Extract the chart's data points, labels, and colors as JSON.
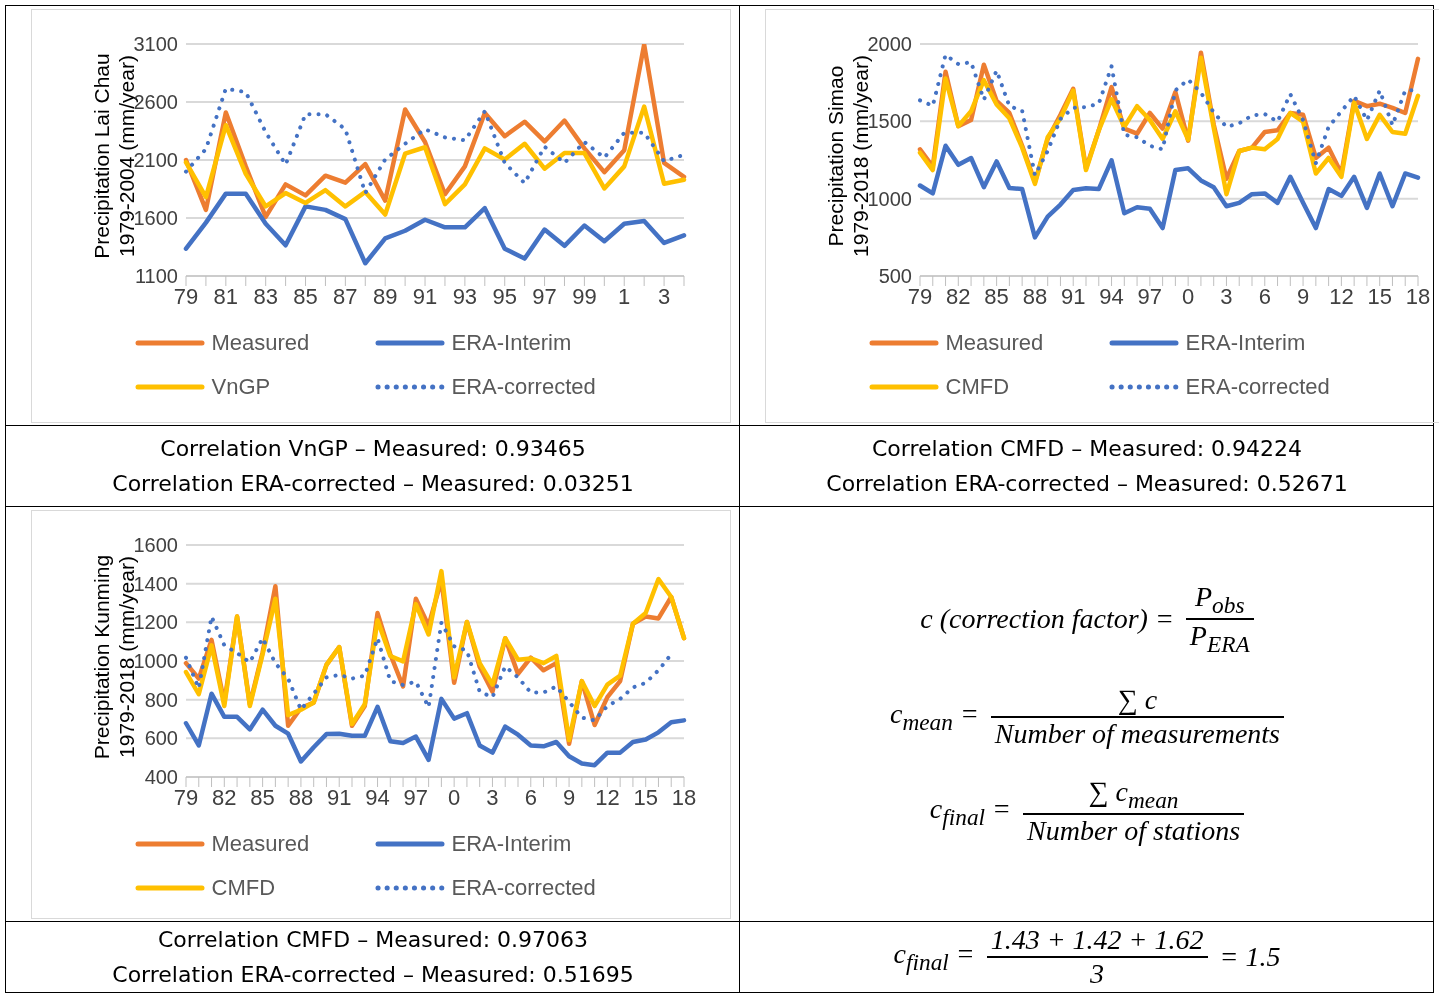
{
  "chart_data": [
    {
      "type": "line",
      "ylabel": "Precipitation Lai Chau\n1979-2004 (mm/year)",
      "categories": [
        "79",
        null,
        "81",
        null,
        "83",
        null,
        "85",
        null,
        "87",
        null,
        "89",
        null,
        "91",
        null,
        "93",
        null,
        "95",
        null,
        "97",
        null,
        "99",
        null,
        "1",
        null,
        "3",
        null
      ],
      "series": [
        {
          "name": "Measured",
          "color": "#ed7d31",
          "values": [
            2100,
            1670,
            2510,
            2045,
            1610,
            1890,
            1795,
            1965,
            1905,
            2065,
            1750,
            2535,
            2255,
            1805,
            2045,
            2505,
            2305,
            2430,
            2260,
            2440,
            2200,
            1995,
            2185,
            3095,
            2075,
            1955
          ]
        },
        {
          "name": "ERA-Interim",
          "color": "#4472c4",
          "values": [
            1335,
            1560,
            1810,
            1810,
            1550,
            1365,
            1700,
            1670,
            1590,
            1210,
            1425,
            1490,
            1585,
            1520,
            1520,
            1685,
            1335,
            1250,
            1500,
            1360,
            1535,
            1400,
            1550,
            1575,
            1385,
            1450
          ]
        },
        {
          "name": "VnGP",
          "color": "#ffc000",
          "values": [
            2080,
            1780,
            2400,
            1980,
            1700,
            1815,
            1730,
            1840,
            1700,
            1825,
            1630,
            2155,
            2210,
            1720,
            1890,
            2200,
            2105,
            2240,
            2025,
            2160,
            2160,
            1855,
            2045,
            2560,
            1895,
            1930
          ]
        },
        {
          "name": "ERA-corrected",
          "color": "#4472c4",
          "line_style": "dotted",
          "values": [
            2000,
            2195,
            2715,
            2685,
            2340,
            2060,
            2495,
            2495,
            2365,
            1815,
            2105,
            2240,
            2365,
            2295,
            2270,
            2520,
            2075,
            1900,
            2215,
            2075,
            2255,
            2120,
            2335,
            2335,
            2090,
            2145
          ]
        }
      ],
      "ylim": [
        1100,
        3100
      ],
      "yticks": [
        1100,
        1600,
        2100,
        2600,
        3100
      ],
      "grid": "y",
      "legend": "bottom",
      "line_style": "solid",
      "annotations": [
        "Correlation VnGP – Measured: 0.93465",
        "Correlation ERA-corrected – Measured: 0.03251"
      ]
    },
    {
      "type": "line",
      "ylabel": "Precipitation Simao\n1979-2018 (mm/year)",
      "categories": [
        "79",
        null,
        null,
        "82",
        null,
        null,
        "85",
        null,
        null,
        "88",
        null,
        null,
        "91",
        null,
        null,
        "94",
        null,
        null,
        "97",
        null,
        null,
        "0",
        null,
        null,
        "3",
        null,
        null,
        "6",
        null,
        null,
        "9",
        null,
        null,
        "12",
        null,
        null,
        "15",
        null,
        null,
        "18"
      ],
      "series": [
        {
          "name": "Measured",
          "color": "#ed7d31",
          "values": [
            1319,
            1208,
            1821,
            1469,
            1509,
            1866,
            1632,
            1554,
            1342,
            1107,
            1386,
            1542,
            1710,
            1196,
            1442,
            1721,
            1453,
            1420,
            1554,
            1453,
            1690,
            1375,
            1944,
            1480,
            1129,
            1308,
            1330,
            1431,
            1442,
            1554,
            1542,
            1263,
            1330,
            1163,
            1632,
            1598,
            1614,
            1587,
            1554,
            1904
          ]
        },
        {
          "name": "ERA-Interim",
          "color": "#4472c4",
          "values": [
            1085,
            1034,
            1342,
            1219,
            1263,
            1074,
            1241,
            1069,
            1062,
            750,
            884,
            962,
            1056,
            1067,
            1062,
            1248,
            906,
            944,
            935,
            810,
            1185,
            1196,
            1118,
            1074,
            951,
            973,
            1029,
            1034,
            973,
            1141,
            973,
            810,
            1062,
            1018,
            1141,
            940,
            1163,
            951,
            1163,
            1136
          ]
        },
        {
          "name": "CMFD",
          "color": "#ffc000",
          "values": [
            1297,
            1185,
            1777,
            1469,
            1565,
            1766,
            1609,
            1520,
            1330,
            1096,
            1397,
            1520,
            1699,
            1185,
            1442,
            1643,
            1464,
            1598,
            1509,
            1386,
            1565,
            1382,
            1911,
            1460,
            1029,
            1308,
            1330,
            1319,
            1386,
            1554,
            1498,
            1163,
            1263,
            1141,
            1621,
            1386,
            1542,
            1431,
            1420,
            1665
          ]
        },
        {
          "name": "ERA-corrected",
          "color": "#4472c4",
          "line_style": "dotted",
          "values": [
            1636,
            1600,
            1930,
            1870,
            1882,
            1640,
            1828,
            1598,
            1569,
            1152,
            1308,
            1516,
            1587,
            1592,
            1614,
            1855,
            1413,
            1397,
            1342,
            1319,
            1700,
            1770,
            1685,
            1558,
            1464,
            1487,
            1538,
            1547,
            1498,
            1676,
            1507,
            1230,
            1464,
            1565,
            1665,
            1507,
            1699,
            1475,
            1699,
            1703
          ]
        }
      ],
      "ylim": [
        500,
        2000
      ],
      "yticks": [
        500,
        1000,
        1500,
        2000
      ],
      "grid": "y",
      "legend": "bottom",
      "line_style": "solid",
      "annotations": [
        "Correlation CMFD – Measured: 0.94224",
        "Correlation ERA-corrected – Measured: 0.52671"
      ]
    },
    {
      "type": "line",
      "ylabel": "Precipitation Kunming\n1979-2018 (mm/year)",
      "categories": [
        "79",
        null,
        null,
        "82",
        null,
        null,
        "85",
        null,
        null,
        "88",
        null,
        null,
        "91",
        null,
        null,
        "94",
        null,
        null,
        "97",
        null,
        null,
        "0",
        null,
        null,
        "3",
        null,
        null,
        "6",
        null,
        null,
        "9",
        null,
        null,
        "12",
        null,
        null,
        "15",
        null,
        null,
        "18"
      ],
      "series": [
        {
          "name": "Measured",
          "color": "#ed7d31",
          "values": [
            989,
            909,
            1109,
            785,
            1230,
            776,
            1044,
            1387,
            665,
            757,
            785,
            980,
            1072,
            665,
            767,
            1248,
            1035,
            868,
            1322,
            1183,
            1420,
            887,
            1202,
            970,
            841,
            1118,
            933,
            1017,
            952,
            989,
            572,
            896,
            669,
            813,
            896,
            1193,
            1230,
            1220,
            1331,
            1118
          ]
        },
        {
          "name": "ERA-Interim",
          "color": "#4472c4",
          "values": [
            678,
            563,
            831,
            711,
            711,
            646,
            748,
            665,
            624,
            480,
            554,
            622,
            624,
            613,
            613,
            763,
            585,
            576,
            609,
            489,
            804,
            702,
            730,
            563,
            526,
            661,
            619,
            563,
            559,
            581,
            507,
            470,
            461,
            526,
            526,
            581,
            594,
            631,
            683,
            693
          ]
        },
        {
          "name": "CMFD",
          "color": "#ffc000",
          "values": [
            943,
            828,
            1081,
            767,
            1230,
            767,
            1035,
            1322,
            720,
            748,
            785,
            980,
            1072,
            674,
            776,
            1211,
            1026,
            998,
            1294,
            1137,
            1465,
            915,
            1202,
            989,
            878,
            1118,
            1007,
            1013,
            989,
            1026,
            591,
            896,
            767,
            878,
            924,
            1193,
            1248,
            1424,
            1331,
            1118
          ]
        },
        {
          "name": "ERA-corrected",
          "color": "#4472c4",
          "line_style": "dotted",
          "values": [
            1017,
            859,
            1230,
            1081,
            1041,
            993,
            1118,
            989,
            909,
            748,
            831,
            915,
            928,
            909,
            924,
            1118,
            896,
            876,
            893,
            761,
            1198,
            1076,
            1054,
            841,
            813,
            972,
            915,
            837,
            837,
            868,
            789,
            707,
            693,
            767,
            804,
            863,
            887,
            952,
            1035,
            null
          ]
        }
      ],
      "ylim": [
        400,
        1600
      ],
      "yticks": [
        400,
        600,
        800,
        1000,
        1200,
        1400,
        1600
      ],
      "grid": "y",
      "legend": "bottom",
      "line_style": "solid",
      "annotations": [
        "Correlation CMFD – Measured: 0.97063",
        "Correlation ERA-corrected – Measured: 0.51695"
      ]
    },
    {
      "type": "other",
      "annotations": [
        "c (correction factor) =",
        "P$_{obs}$",
        "P$_{ERA}$",
        "c$_{mean}$ =",
        "∑ c",
        "Number of measurements",
        "c$_{final}$ =",
        "∑ c$_{mean}$",
        "Number of stations",
        "c$_{final}$ =",
        "1.43 + 1.42 + 1.62",
        "3",
        "= 1.5"
      ]
    }
  ]
}
